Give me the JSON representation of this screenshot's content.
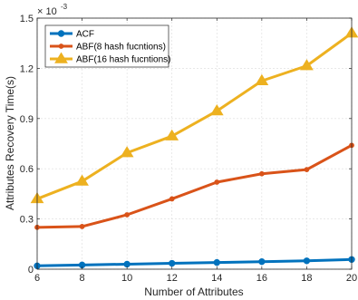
{
  "chart_data": {
    "type": "line",
    "xlabel": "Number of Attributes",
    "ylabel": "Attributes Recovery Time(s)",
    "y_exponent_label": "× 10",
    "y_exponent_power": "-3",
    "xlim": [
      6,
      20
    ],
    "ylim": [
      0,
      1.5
    ],
    "x_ticks": [
      6,
      8,
      10,
      12,
      14,
      16,
      18,
      20
    ],
    "x_tick_labels": [
      "6",
      "8",
      "10",
      "12",
      "14",
      "16",
      "18",
      "20"
    ],
    "y_ticks": [
      0,
      0.3,
      0.6,
      0.9,
      1.2,
      1.5
    ],
    "y_tick_labels": [
      "0",
      "0.3",
      "0.6",
      "0.9",
      "1.2",
      "1.5"
    ],
    "grid": true,
    "legend_position": "top-left",
    "x": [
      6,
      8,
      10,
      12,
      14,
      16,
      18,
      20
    ],
    "series": [
      {
        "name": "ACF",
        "color": "#0072BD",
        "marker": "circle",
        "values": [
          0.02,
          0.025,
          0.03,
          0.035,
          0.04,
          0.045,
          0.05,
          0.058
        ]
      },
      {
        "name": "ABF(8 hash fucntions)",
        "color": "#D95319",
        "marker": "dot",
        "values": [
          0.25,
          0.255,
          0.325,
          0.42,
          0.52,
          0.57,
          0.595,
          0.74
        ]
      },
      {
        "name": "ABF(16 hash fucntions)",
        "color": "#EDB120",
        "marker": "triangle",
        "values": [
          0.42,
          0.525,
          0.695,
          0.795,
          0.945,
          1.125,
          1.215,
          1.41
        ]
      }
    ]
  }
}
